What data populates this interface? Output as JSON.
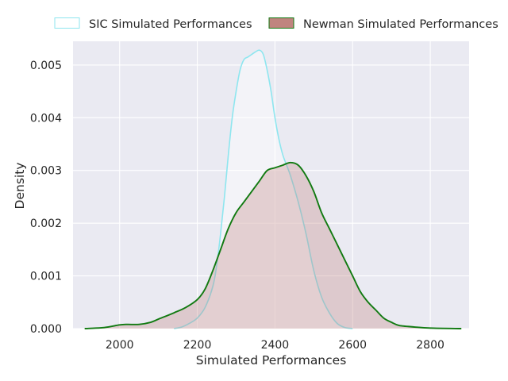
{
  "chart_data": {
    "type": "area",
    "title": "",
    "xlabel": "Simulated Performances",
    "ylabel": "Density",
    "xlim": [
      1880,
      2900
    ],
    "ylim": [
      0,
      0.00545
    ],
    "x_ticks": [
      2000,
      2200,
      2400,
      2600,
      2800
    ],
    "x_tick_labels": [
      "2000",
      "2200",
      "2400",
      "2600",
      "2800"
    ],
    "y_ticks": [
      0,
      0.001,
      0.002,
      0.003,
      0.004,
      0.005
    ],
    "y_tick_labels": [
      "0.000",
      "0.001",
      "0.002",
      "0.003",
      "0.004",
      "0.005"
    ],
    "grid": true,
    "legend_position": "top, above plot",
    "series": [
      {
        "name": "SIC Simulated Performances",
        "style": "outline",
        "line_color": "#8ee6ef",
        "fill_color": "#ffffff",
        "fill_opacity": 0.45,
        "points": [
          [
            2140,
            0.0
          ],
          [
            2160,
            3e-05
          ],
          [
            2180,
            0.0001
          ],
          [
            2200,
            0.0002
          ],
          [
            2220,
            0.0004
          ],
          [
            2240,
            0.0008
          ],
          [
            2250,
            0.0012
          ],
          [
            2260,
            0.0018
          ],
          [
            2270,
            0.0025
          ],
          [
            2280,
            0.0033
          ],
          [
            2290,
            0.004
          ],
          [
            2300,
            0.0045
          ],
          [
            2310,
            0.0049
          ],
          [
            2320,
            0.0051
          ],
          [
            2330,
            0.00515
          ],
          [
            2340,
            0.0052
          ],
          [
            2350,
            0.00525
          ],
          [
            2360,
            0.00528
          ],
          [
            2370,
            0.0052
          ],
          [
            2380,
            0.0049
          ],
          [
            2390,
            0.0045
          ],
          [
            2400,
            0.004
          ],
          [
            2410,
            0.0036
          ],
          [
            2420,
            0.0033
          ],
          [
            2430,
            0.0031
          ],
          [
            2440,
            0.0029
          ],
          [
            2460,
            0.0024
          ],
          [
            2480,
            0.0018
          ],
          [
            2500,
            0.0011
          ],
          [
            2520,
            0.0006
          ],
          [
            2540,
            0.0003
          ],
          [
            2560,
            0.0001
          ],
          [
            2580,
            2e-05
          ],
          [
            2600,
            0.0
          ]
        ]
      },
      {
        "name": "Newman Simulated Performances",
        "style": "filled",
        "line_color": "#117a11",
        "fill_color": "#c0847f",
        "fill_opacity": 0.32,
        "points": [
          [
            1910,
            0.0
          ],
          [
            1960,
            2e-05
          ],
          [
            2000,
            7e-05
          ],
          [
            2020,
            8e-05
          ],
          [
            2050,
            8e-05
          ],
          [
            2080,
            0.00012
          ],
          [
            2100,
            0.00018
          ],
          [
            2140,
            0.0003
          ],
          [
            2170,
            0.0004
          ],
          [
            2200,
            0.00055
          ],
          [
            2220,
            0.00075
          ],
          [
            2240,
            0.0011
          ],
          [
            2260,
            0.0015
          ],
          [
            2280,
            0.0019
          ],
          [
            2300,
            0.0022
          ],
          [
            2320,
            0.0024
          ],
          [
            2340,
            0.0026
          ],
          [
            2360,
            0.0028
          ],
          [
            2380,
            0.003
          ],
          [
            2400,
            0.00305
          ],
          [
            2420,
            0.0031
          ],
          [
            2440,
            0.00315
          ],
          [
            2460,
            0.0031
          ],
          [
            2480,
            0.0029
          ],
          [
            2500,
            0.0026
          ],
          [
            2520,
            0.0022
          ],
          [
            2540,
            0.0019
          ],
          [
            2560,
            0.0016
          ],
          [
            2580,
            0.0013
          ],
          [
            2600,
            0.001
          ],
          [
            2620,
            0.0007
          ],
          [
            2640,
            0.0005
          ],
          [
            2660,
            0.00035
          ],
          [
            2680,
            0.0002
          ],
          [
            2700,
            0.00012
          ],
          [
            2720,
            6e-05
          ],
          [
            2760,
            3e-05
          ],
          [
            2800,
            1e-05
          ],
          [
            2880,
            0.0
          ]
        ]
      }
    ]
  }
}
